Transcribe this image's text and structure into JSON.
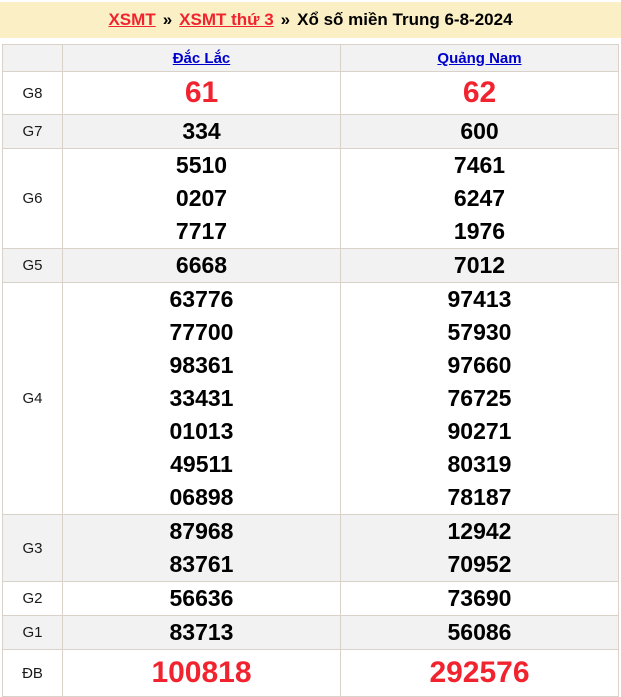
{
  "breadcrumb": {
    "links": [
      {
        "label": "XSMT"
      },
      {
        "label": "XSMT thứ 3"
      }
    ],
    "separator": "»",
    "title": "Xổ số miền Trung 6-8-2024"
  },
  "table": {
    "columns": [
      "Đắc Lắc",
      "Quảng Nam"
    ],
    "rows": [
      {
        "key": "g8",
        "label": "G8",
        "highlight": true,
        "cells": [
          [
            "61"
          ],
          [
            "62"
          ]
        ]
      },
      {
        "key": "g7",
        "label": "G7",
        "highlight": false,
        "cells": [
          [
            "334"
          ],
          [
            "600"
          ]
        ]
      },
      {
        "key": "g6",
        "label": "G6",
        "highlight": false,
        "cells": [
          [
            "5510",
            "0207",
            "7717"
          ],
          [
            "7461",
            "6247",
            "1976"
          ]
        ]
      },
      {
        "key": "g5",
        "label": "G5",
        "highlight": false,
        "cells": [
          [
            "6668"
          ],
          [
            "7012"
          ]
        ]
      },
      {
        "key": "g4",
        "label": "G4",
        "highlight": false,
        "cells": [
          [
            "63776",
            "77700",
            "98361",
            "33431",
            "01013",
            "49511",
            "06898"
          ],
          [
            "97413",
            "57930",
            "97660",
            "76725",
            "90271",
            "80319",
            "78187"
          ]
        ]
      },
      {
        "key": "g3",
        "label": "G3",
        "highlight": false,
        "cells": [
          [
            "87968",
            "83761"
          ],
          [
            "12942",
            "70952"
          ]
        ]
      },
      {
        "key": "g2",
        "label": "G2",
        "highlight": false,
        "cells": [
          [
            "56636"
          ],
          [
            "73690"
          ]
        ]
      },
      {
        "key": "g1",
        "label": "G1",
        "highlight": false,
        "cells": [
          [
            "83713"
          ],
          [
            "56086"
          ]
        ]
      },
      {
        "key": "db",
        "label": "ĐB",
        "highlight": true,
        "cells": [
          [
            "100818"
          ],
          [
            "292576"
          ]
        ]
      }
    ]
  },
  "colors": {
    "accent_red": "#f0232e",
    "link_blue": "#0000cc",
    "banner_bg": "#fbf0c5",
    "row_alt_bg": "#f2f2f2",
    "border": "#d9d2c8",
    "text": "#000000"
  }
}
